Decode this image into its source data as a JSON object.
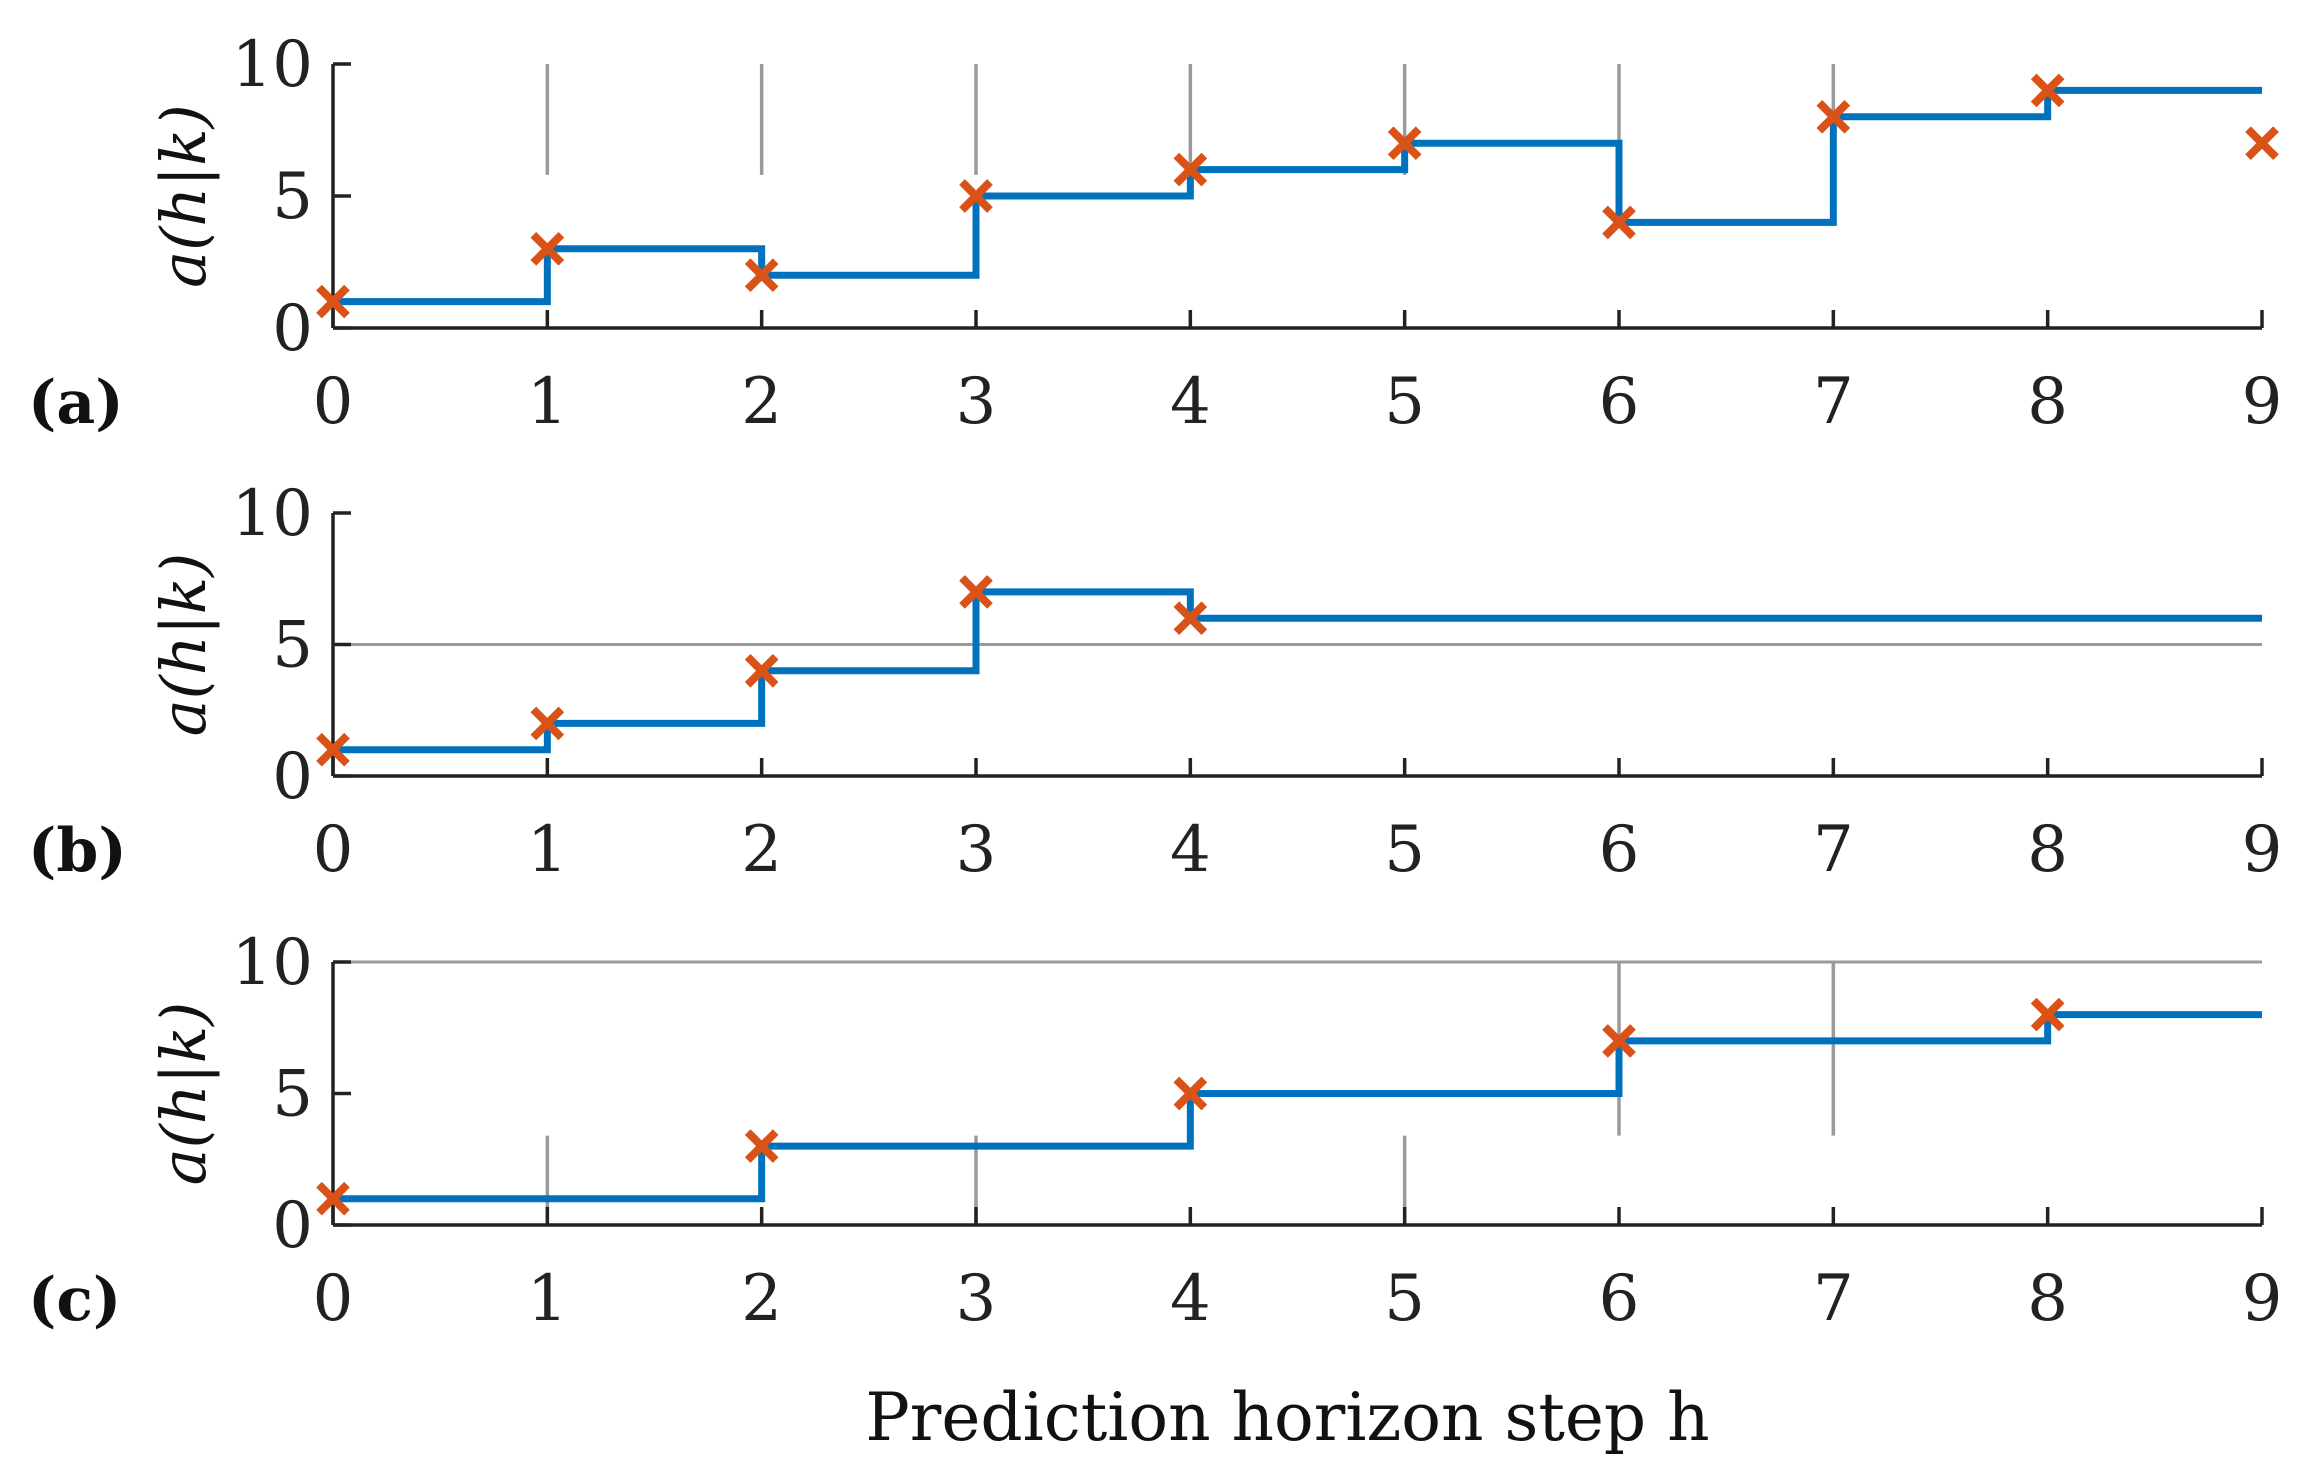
{
  "chart_data": [
    {
      "type": "line",
      "panel_label": "(a)",
      "ylabel": "a(h|k)",
      "xlabel": "",
      "x_ticks": [
        0,
        1,
        2,
        3,
        4,
        5,
        6,
        7,
        8,
        9
      ],
      "y_ticks": [
        0,
        5,
        10
      ],
      "xlim": [
        0,
        9
      ],
      "ylim": [
        0,
        10
      ],
      "step_line": {
        "x": [
          0,
          1,
          2,
          3,
          4,
          5,
          6,
          7,
          8,
          9
        ],
        "y": [
          1,
          3,
          2,
          5,
          6,
          7,
          4,
          8,
          9,
          9
        ]
      },
      "markers": {
        "x": [
          0,
          1,
          2,
          3,
          4,
          5,
          6,
          7,
          8,
          9
        ],
        "y": [
          1,
          3,
          2,
          5,
          6,
          7,
          4,
          8,
          9,
          7
        ]
      },
      "ref_lines": [
        {
          "orientation": "vertical",
          "x": 1,
          "y_range": [
            5.8,
            10
          ]
        },
        {
          "orientation": "vertical",
          "x": 2,
          "y_range": [
            5.8,
            10
          ]
        },
        {
          "orientation": "vertical",
          "x": 3,
          "y_range": [
            5.8,
            10
          ]
        },
        {
          "orientation": "vertical",
          "x": 4,
          "y_range": [
            5.8,
            10
          ]
        },
        {
          "orientation": "vertical",
          "x": 5,
          "y_range": [
            5.8,
            10
          ]
        },
        {
          "orientation": "vertical",
          "x": 6,
          "y_range": [
            5.8,
            10
          ]
        },
        {
          "orientation": "vertical",
          "x": 7,
          "y_range": [
            5.8,
            10
          ]
        }
      ]
    },
    {
      "type": "line",
      "panel_label": "(b)",
      "ylabel": "a(h|k)",
      "xlabel": "",
      "x_ticks": [
        0,
        1,
        2,
        3,
        4,
        5,
        6,
        7,
        8,
        9
      ],
      "y_ticks": [
        0,
        5,
        10
      ],
      "xlim": [
        0,
        9
      ],
      "ylim": [
        0,
        10
      ],
      "step_line": {
        "x": [
          0,
          1,
          2,
          3,
          4,
          5,
          6,
          7,
          8,
          9
        ],
        "y": [
          1,
          2,
          4,
          7,
          6,
          6,
          6,
          6,
          6,
          6
        ]
      },
      "markers": {
        "x": [
          0,
          1,
          2,
          3,
          4
        ],
        "y": [
          1,
          2,
          4,
          7,
          6
        ]
      },
      "ref_lines": [
        {
          "orientation": "horizontal",
          "y": 5,
          "x_range": [
            0,
            9
          ]
        }
      ]
    },
    {
      "type": "line",
      "panel_label": "(c)",
      "ylabel": "a(h|k)",
      "xlabel": "Prediction horizon step h",
      "x_ticks": [
        0,
        1,
        2,
        3,
        4,
        5,
        6,
        7,
        8,
        9
      ],
      "y_ticks": [
        0,
        5,
        10
      ],
      "xlim": [
        0,
        9
      ],
      "ylim": [
        0,
        10
      ],
      "step_line": {
        "x": [
          0,
          1,
          2,
          3,
          4,
          5,
          6,
          7,
          8,
          9
        ],
        "y": [
          1,
          1,
          3,
          3,
          5,
          5,
          7,
          7,
          8,
          8
        ]
      },
      "markers": {
        "x": [
          0,
          2,
          4,
          6,
          8
        ],
        "y": [
          1,
          3,
          5,
          7,
          8
        ]
      },
      "ref_lines": [
        {
          "orientation": "horizontal",
          "y": 10,
          "x_range": [
            0,
            9
          ]
        },
        {
          "orientation": "vertical",
          "x": 1,
          "y_range": [
            0,
            3.4
          ]
        },
        {
          "orientation": "vertical",
          "x": 3,
          "y_range": [
            0,
            3.4
          ]
        },
        {
          "orientation": "vertical",
          "x": 5,
          "y_range": [
            0,
            3.4
          ]
        },
        {
          "orientation": "vertical",
          "x": 6,
          "y_range": [
            3.4,
            10
          ]
        },
        {
          "orientation": "vertical",
          "x": 7,
          "y_range": [
            3.4,
            10
          ]
        }
      ]
    }
  ],
  "colors": {
    "line": "#0072BD",
    "marker": "#D95319",
    "axis": "#222222",
    "ref_line": "#9a9a9a"
  }
}
